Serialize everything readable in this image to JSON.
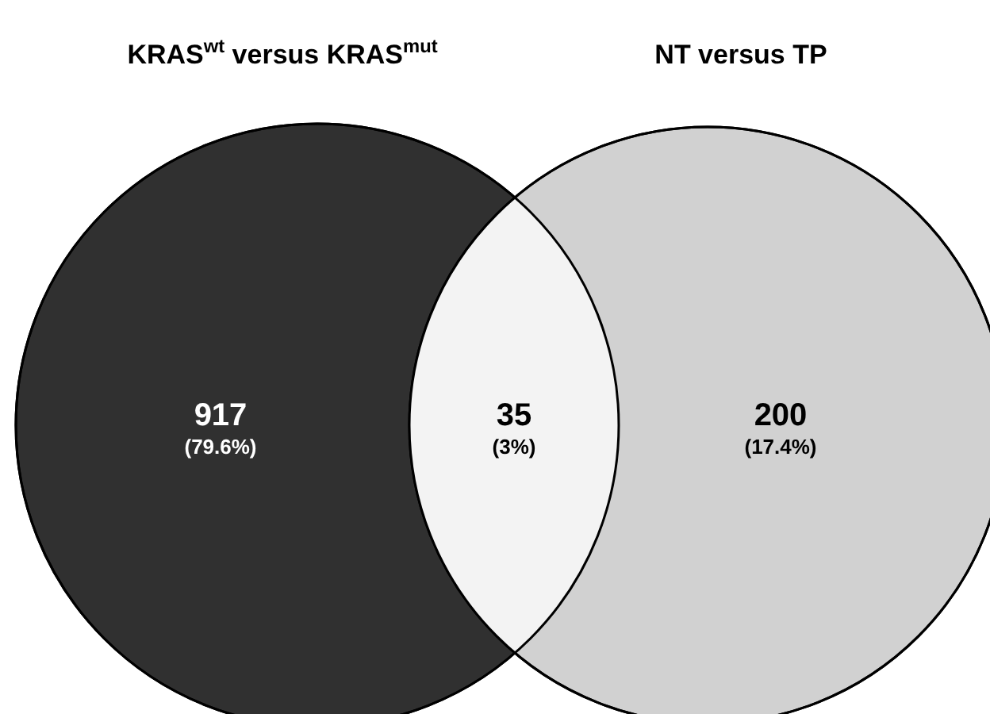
{
  "chart_data": {
    "type": "other",
    "categories": [
      null,
      null,
      null
    ],
    "values": [
      917,
      35,
      200
    ],
    "colors": [
      "#303030",
      "#f3f3f3",
      "#d1d1d1"
    ],
    "data_labels": true,
    "annotations": [
      "KRAS$^{wt}$ versus KRAS$^{mut}$",
      "NT versus TP",
      "(79.6%)",
      "(3%)",
      "(17.4%)"
    ]
  }
}
